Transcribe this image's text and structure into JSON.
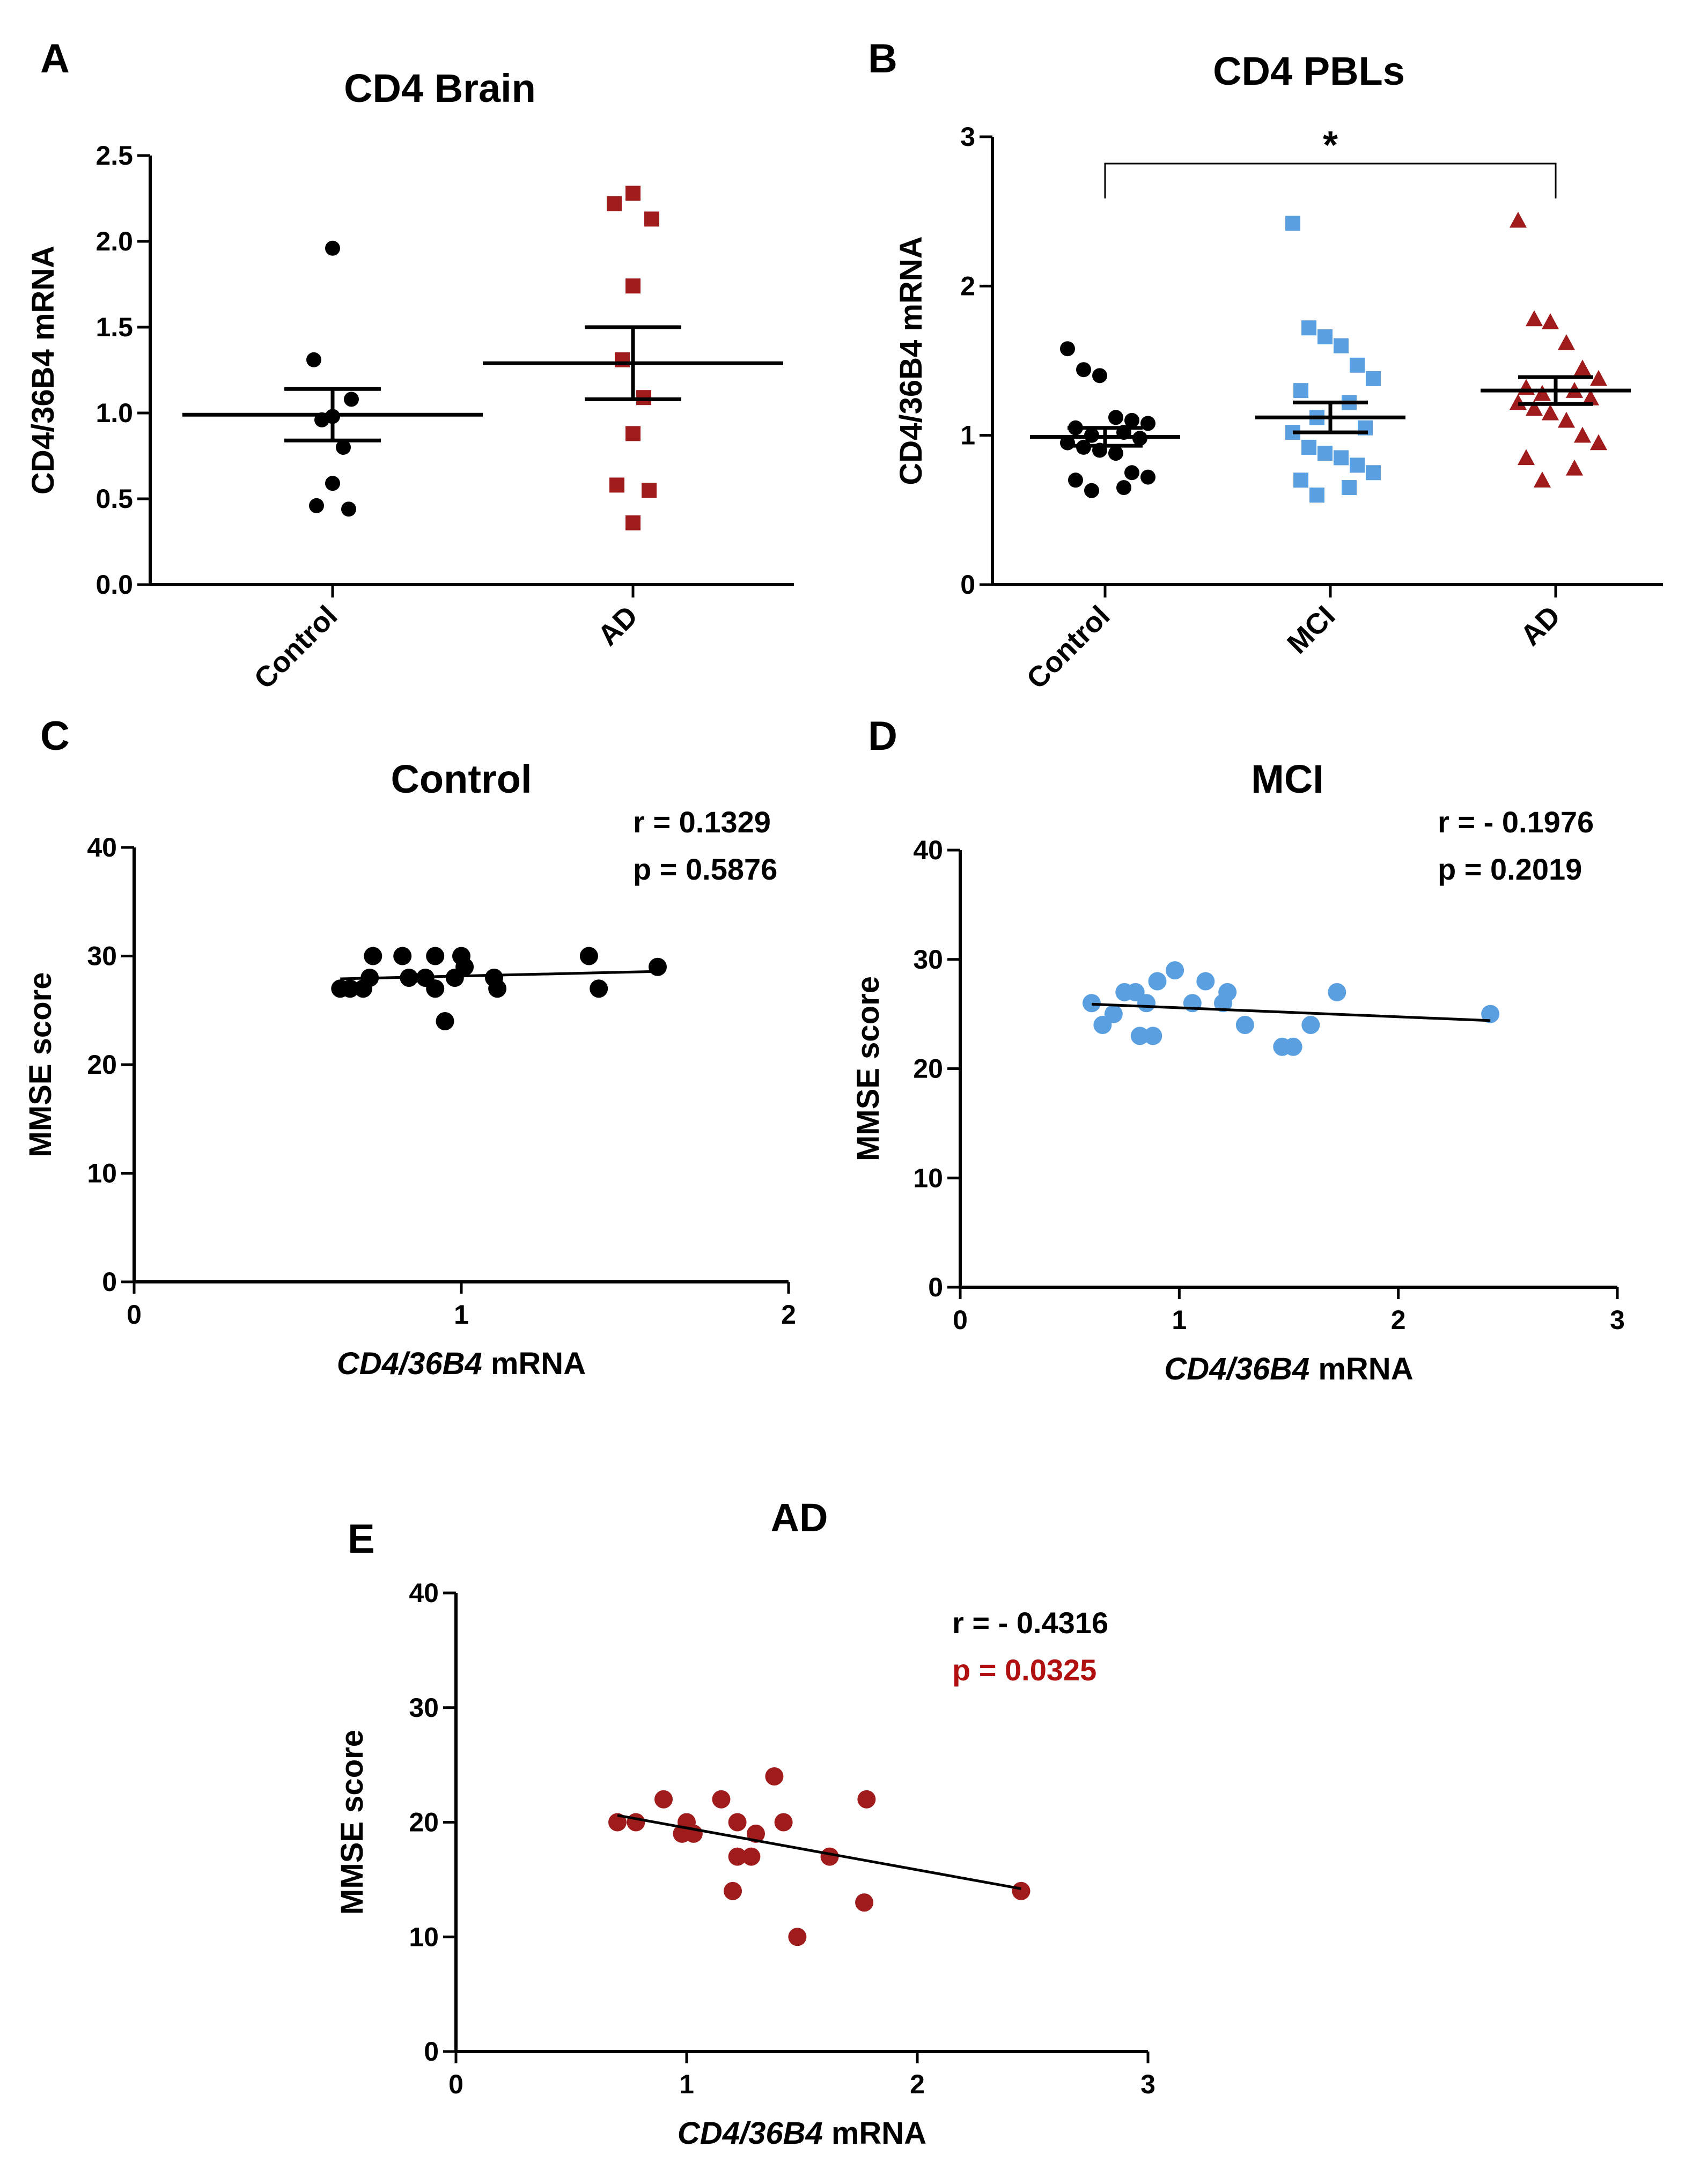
{
  "colors": {
    "control": "#000000",
    "mci": "#5aa0e0",
    "ad": "#a01c1c",
    "axis": "#000000",
    "p_significant": "#b01010"
  },
  "chart_data": [
    {
      "id": "A",
      "panel_letter": "A",
      "type": "scatter",
      "subtype": "dot-plot-mean-sem",
      "title": "CD4 Brain",
      "xlabel": "",
      "ylabel": "CD4/36B4 mRNA",
      "ylim": [
        0,
        2.5
      ],
      "yticks": [
        "0.0",
        "0.5",
        "1.0",
        "1.5",
        "2.0",
        "2.5"
      ],
      "categories": [
        "Control",
        "AD"
      ],
      "series": [
        {
          "name": "Control",
          "marker": "circle",
          "color": "#000000",
          "mean": 0.99,
          "sem_low": 0.84,
          "sem_high": 1.14,
          "values": [
            1.96,
            1.31,
            1.08,
            0.98,
            0.96,
            0.8,
            0.59,
            0.46,
            0.44
          ]
        },
        {
          "name": "AD",
          "marker": "square",
          "color": "#a01c1c",
          "mean": 1.29,
          "sem_low": 1.08,
          "sem_high": 1.5,
          "values": [
            2.28,
            2.22,
            2.13,
            1.74,
            1.31,
            1.09,
            0.88,
            0.58,
            0.55,
            0.36
          ]
        }
      ]
    },
    {
      "id": "B",
      "panel_letter": "B",
      "type": "scatter",
      "subtype": "dot-plot-mean-sem",
      "title": "CD4 PBLs",
      "xlabel": "",
      "ylabel": "CD4/36B4 mRNA",
      "ylim": [
        0,
        3
      ],
      "yticks": [
        "0",
        "1",
        "2",
        "3"
      ],
      "categories": [
        "Control",
        "MCI",
        "AD"
      ],
      "significance": {
        "from": "Control",
        "to": "AD",
        "label": "*"
      },
      "series": [
        {
          "name": "Control",
          "marker": "circle",
          "color": "#000000",
          "mean": 0.99,
          "sem_low": 0.93,
          "sem_high": 1.05,
          "values": [
            1.58,
            1.44,
            1.4,
            1.12,
            1.1,
            1.08,
            1.05,
            1.02,
            1.0,
            0.98,
            0.95,
            0.92,
            0.9,
            0.88,
            0.75,
            0.72,
            0.7,
            0.65,
            0.63
          ]
        },
        {
          "name": "MCI",
          "marker": "square",
          "color": "#5aa0e0",
          "mean": 1.12,
          "sem_low": 1.02,
          "sem_high": 1.22,
          "values": [
            2.42,
            1.72,
            1.66,
            1.6,
            1.47,
            1.38,
            1.3,
            1.22,
            1.12,
            1.05,
            1.02,
            0.92,
            0.88,
            0.85,
            0.8,
            0.75,
            0.7,
            0.65,
            0.6
          ]
        },
        {
          "name": "AD",
          "marker": "triangle",
          "color": "#a01c1c",
          "mean": 1.3,
          "sem_low": 1.21,
          "sem_high": 1.39,
          "values": [
            2.44,
            1.78,
            1.76,
            1.62,
            1.45,
            1.38,
            1.32,
            1.3,
            1.28,
            1.25,
            1.22,
            1.18,
            1.15,
            1.1,
            1.0,
            0.95,
            0.85,
            0.78,
            0.7
          ]
        }
      ]
    },
    {
      "id": "C",
      "panel_letter": "C",
      "type": "scatter",
      "title": "Control",
      "xlabel_italic": "CD4/36B4",
      "xlabel_rest": " mRNA",
      "ylabel": "MMSE score",
      "xlim": [
        0,
        2
      ],
      "ylim": [
        0,
        40
      ],
      "xticks": [
        "0",
        "1",
        "2"
      ],
      "yticks": [
        "0",
        "10",
        "20",
        "30",
        "40"
      ],
      "color": "#000000",
      "stats": {
        "r": "r = 0.1329",
        "p": "p = 0.5876"
      },
      "p_significant": false,
      "regression": {
        "x": [
          0.63,
          1.62
        ],
        "y": [
          27.9,
          28.6
        ]
      },
      "points": [
        {
          "x": 0.63,
          "y": 27
        },
        {
          "x": 0.66,
          "y": 27
        },
        {
          "x": 0.7,
          "y": 27
        },
        {
          "x": 0.72,
          "y": 28
        },
        {
          "x": 0.73,
          "y": 30
        },
        {
          "x": 0.82,
          "y": 30
        },
        {
          "x": 0.84,
          "y": 28
        },
        {
          "x": 0.89,
          "y": 28
        },
        {
          "x": 0.92,
          "y": 27
        },
        {
          "x": 0.92,
          "y": 30
        },
        {
          "x": 0.95,
          "y": 24
        },
        {
          "x": 0.98,
          "y": 28
        },
        {
          "x": 1.0,
          "y": 30
        },
        {
          "x": 1.01,
          "y": 29
        },
        {
          "x": 1.11,
          "y": 27
        },
        {
          "x": 1.1,
          "y": 28
        },
        {
          "x": 1.39,
          "y": 30
        },
        {
          "x": 1.42,
          "y": 27
        },
        {
          "x": 1.6,
          "y": 29
        }
      ]
    },
    {
      "id": "D",
      "panel_letter": "D",
      "type": "scatter",
      "title": "MCI",
      "xlabel_italic": "CD4/36B4",
      "xlabel_rest": " mRNA",
      "ylabel": "MMSE score",
      "xlim": [
        0,
        3
      ],
      "ylim": [
        0,
        40
      ],
      "xticks": [
        "0",
        "1",
        "2",
        "3"
      ],
      "yticks": [
        "0",
        "10",
        "20",
        "30",
        "40"
      ],
      "color": "#5aa0e0",
      "stats": {
        "r": "r = - 0.1976",
        "p": "p =  0.2019"
      },
      "p_significant": false,
      "regression": {
        "x": [
          0.6,
          2.42
        ],
        "y": [
          25.9,
          24.4
        ]
      },
      "points": [
        {
          "x": 0.6,
          "y": 26
        },
        {
          "x": 0.65,
          "y": 24
        },
        {
          "x": 0.7,
          "y": 25
        },
        {
          "x": 0.75,
          "y": 27
        },
        {
          "x": 0.8,
          "y": 27
        },
        {
          "x": 0.82,
          "y": 23
        },
        {
          "x": 0.85,
          "y": 26
        },
        {
          "x": 0.88,
          "y": 23
        },
        {
          "x": 0.9,
          "y": 28
        },
        {
          "x": 0.98,
          "y": 29
        },
        {
          "x": 1.06,
          "y": 26
        },
        {
          "x": 1.12,
          "y": 28
        },
        {
          "x": 1.2,
          "y": 26
        },
        {
          "x": 1.22,
          "y": 27
        },
        {
          "x": 1.3,
          "y": 24
        },
        {
          "x": 1.47,
          "y": 22
        },
        {
          "x": 1.52,
          "y": 22
        },
        {
          "x": 1.6,
          "y": 24
        },
        {
          "x": 1.72,
          "y": 27
        },
        {
          "x": 2.42,
          "y": 25
        }
      ]
    },
    {
      "id": "E",
      "panel_letter": "E",
      "type": "scatter",
      "title": "AD",
      "xlabel_italic": "CD4/36B4",
      "xlabel_rest": " mRNA",
      "ylabel": "MMSE score",
      "xlim": [
        0,
        3
      ],
      "ylim": [
        0,
        40
      ],
      "xticks": [
        "0",
        "1",
        "2",
        "3"
      ],
      "yticks": [
        "0",
        "10",
        "20",
        "30",
        "40"
      ],
      "color": "#a01c1c",
      "stats": {
        "r": "r = - 0.4316",
        "p": "p =  0.0325"
      },
      "p_significant": true,
      "regression": {
        "x": [
          0.7,
          2.45
        ],
        "y": [
          20.6,
          14.2
        ]
      },
      "points": [
        {
          "x": 0.7,
          "y": 20
        },
        {
          "x": 0.78,
          "y": 20
        },
        {
          "x": 0.9,
          "y": 22
        },
        {
          "x": 0.98,
          "y": 19
        },
        {
          "x": 1.0,
          "y": 20
        },
        {
          "x": 1.03,
          "y": 19
        },
        {
          "x": 1.15,
          "y": 22
        },
        {
          "x": 1.2,
          "y": 14
        },
        {
          "x": 1.22,
          "y": 17
        },
        {
          "x": 1.22,
          "y": 20
        },
        {
          "x": 1.28,
          "y": 17
        },
        {
          "x": 1.3,
          "y": 19
        },
        {
          "x": 1.38,
          "y": 24
        },
        {
          "x": 1.42,
          "y": 20
        },
        {
          "x": 1.48,
          "y": 10
        },
        {
          "x": 1.62,
          "y": 17
        },
        {
          "x": 1.77,
          "y": 13
        },
        {
          "x": 1.78,
          "y": 22
        },
        {
          "x": 2.45,
          "y": 14
        }
      ]
    }
  ]
}
